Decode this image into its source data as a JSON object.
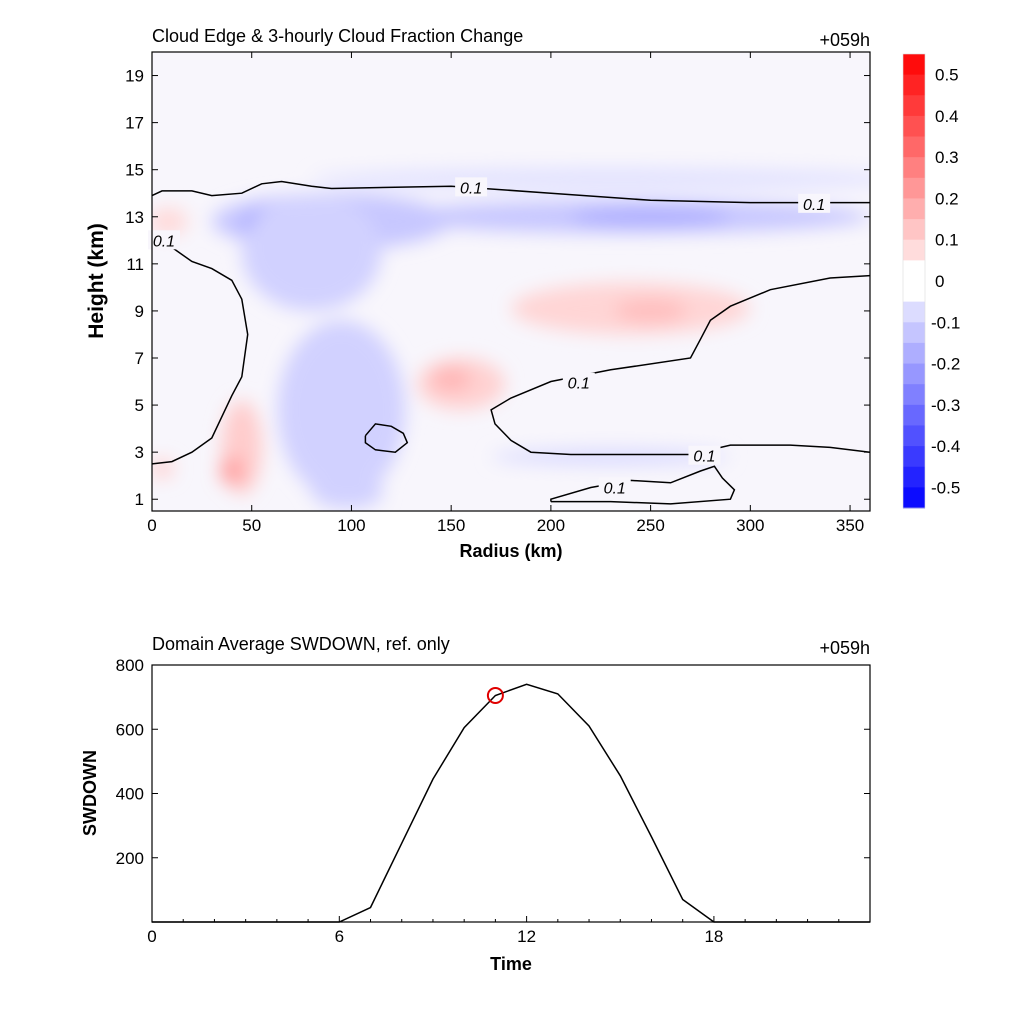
{
  "chart_data": [
    {
      "type": "heatmap",
      "title": "Cloud Edge & 3-hourly Cloud Fraction Change",
      "time_label": "+059h",
      "xlabel": "Radius (km)",
      "ylabel": "Height (km)",
      "xlim": [
        0,
        360
      ],
      "ylim": [
        0.5,
        20
      ],
      "xticks": [
        0,
        50,
        100,
        150,
        200,
        250,
        300,
        350
      ],
      "yticks": [
        1,
        3,
        5,
        7,
        9,
        11,
        13,
        15,
        17,
        19
      ],
      "colorbar": {
        "range": [
          -0.55,
          0.55
        ],
        "step": 0.05,
        "labels": [
          "0.5",
          "0.4",
          "0.3",
          "0.2",
          "0.1",
          "0",
          "-0.1",
          "-0.2",
          "-0.3",
          "-0.4",
          "-0.5"
        ],
        "positive_color": "#ff0000",
        "negative_color": "#0000ff"
      },
      "contour_label": "0.1",
      "regions": [
        {
          "cx": 90,
          "cy": 12.8,
          "rx": 60,
          "ry": 1.2,
          "value": -0.12
        },
        {
          "cx": 73,
          "cy": 12.6,
          "rx": 28,
          "ry": 1.0,
          "value": -0.22
        },
        {
          "cx": 73,
          "cy": 12.7,
          "rx": 9,
          "ry": 0.7,
          "value": -0.33
        },
        {
          "cx": 80,
          "cy": 11.5,
          "rx": 35,
          "ry": 2.5,
          "value": -0.1
        },
        {
          "cx": 240,
          "cy": 13.0,
          "rx": 120,
          "ry": 0.7,
          "value": -0.12
        },
        {
          "cx": 250,
          "cy": 13.0,
          "rx": 40,
          "ry": 0.45,
          "value": -0.17
        },
        {
          "cx": 230,
          "cy": 14.6,
          "rx": 150,
          "ry": 0.5,
          "value": -0.06
        },
        {
          "cx": 100,
          "cy": 5.8,
          "rx": 22,
          "ry": 2.4,
          "value": -0.18
        },
        {
          "cx": 95,
          "cy": 4.8,
          "rx": 32,
          "ry": 3.8,
          "value": -0.1
        },
        {
          "cx": 98,
          "cy": 1.3,
          "rx": 18,
          "ry": 0.7,
          "value": -0.1
        },
        {
          "cx": 230,
          "cy": 2.8,
          "rx": 60,
          "ry": 0.35,
          "value": -0.08
        },
        {
          "cx": 240,
          "cy": 9.1,
          "rx": 60,
          "ry": 1.1,
          "value": 0.09
        },
        {
          "cx": 250,
          "cy": 9.0,
          "rx": 18,
          "ry": 0.5,
          "value": 0.14
        },
        {
          "cx": 155,
          "cy": 5.9,
          "rx": 22,
          "ry": 1.1,
          "value": 0.1
        },
        {
          "cx": 150,
          "cy": 6.1,
          "rx": 10,
          "ry": 0.5,
          "value": 0.16
        },
        {
          "cx": 45,
          "cy": 3.2,
          "rx": 10,
          "ry": 2.0,
          "value": 0.11
        },
        {
          "cx": 40,
          "cy": 2.2,
          "rx": 6,
          "ry": 0.6,
          "value": 0.2
        },
        {
          "cx": 8,
          "cy": 12.8,
          "rx": 10,
          "ry": 0.6,
          "value": 0.08
        },
        {
          "cx": 5,
          "cy": 2.3,
          "rx": 6,
          "ry": 0.4,
          "value": 0.1
        }
      ],
      "contours": [
        {
          "points": [
            [
              0,
              13.9
            ],
            [
              5,
              14.1
            ],
            [
              20,
              14.1
            ],
            [
              30,
              13.9
            ],
            [
              45,
              14.0
            ],
            [
              55,
              14.4
            ],
            [
              65,
              14.5
            ],
            [
              80,
              14.3
            ],
            [
              90,
              14.2
            ],
            [
              150,
              14.3
            ],
            [
              200,
              14.0
            ],
            [
              250,
              13.7
            ],
            [
              300,
              13.6
            ],
            [
              330,
              13.6
            ],
            [
              360,
              13.6
            ]
          ],
          "labels": [
            [
              160,
              14.25
            ],
            [
              332,
              13.55
            ]
          ]
        },
        {
          "points": [
            [
              0,
              12.2
            ],
            [
              10,
              11.7
            ],
            [
              20,
              11.1
            ],
            [
              30,
              10.8
            ],
            [
              40,
              10.3
            ],
            [
              45,
              9.5
            ],
            [
              48,
              8.0
            ],
            [
              45,
              6.2
            ],
            [
              40,
              5.4
            ],
            [
              35,
              4.5
            ],
            [
              30,
              3.6
            ],
            [
              20,
              3.0
            ],
            [
              10,
              2.6
            ],
            [
              0,
              2.5
            ]
          ],
          "labels": [
            [
              6,
              12.0
            ]
          ]
        },
        {
          "points": [
            [
              360,
              10.5
            ],
            [
              340,
              10.4
            ],
            [
              310,
              9.9
            ],
            [
              290,
              9.2
            ],
            [
              280,
              8.6
            ],
            [
              275,
              7.8
            ],
            [
              270,
              7.0
            ],
            [
              230,
              6.5
            ],
            [
              200,
              6.0
            ],
            [
              180,
              5.3
            ],
            [
              170,
              4.8
            ],
            [
              172,
              4.2
            ],
            [
              180,
              3.5
            ],
            [
              190,
              3.0
            ],
            [
              210,
              2.9
            ],
            [
              240,
              2.9
            ],
            [
              270,
              2.9
            ],
            [
              290,
              3.3
            ],
            [
              320,
              3.3
            ],
            [
              340,
              3.2
            ],
            [
              360,
              3.0
            ]
          ],
          "labels": [
            [
              214,
              5.95
            ],
            [
              277,
              2.85
            ]
          ]
        },
        {
          "points": [
            [
              200,
              0.9
            ],
            [
              200,
              1.0
            ],
            [
              220,
              1.5
            ],
            [
              240,
              1.8
            ],
            [
              260,
              1.7
            ],
            [
              275,
              2.2
            ],
            [
              282,
              2.4
            ],
            [
              286,
              1.9
            ],
            [
              292,
              1.4
            ],
            [
              290,
              1.0
            ],
            [
              260,
              0.8
            ],
            [
              230,
              0.9
            ],
            [
              200,
              0.9
            ]
          ],
          "labels": [
            [
              232,
              1.5
            ]
          ]
        },
        {
          "points": [
            [
              107,
              3.7
            ],
            [
              112,
              4.2
            ],
            [
              120,
              4.1
            ],
            [
              126,
              3.8
            ],
            [
              128,
              3.4
            ],
            [
              122,
              3.0
            ],
            [
              112,
              3.1
            ],
            [
              107,
              3.4
            ],
            [
              107,
              3.7
            ]
          ],
          "labels": []
        }
      ]
    },
    {
      "type": "line",
      "title": "Domain Average SWDOWN, ref. only",
      "time_label": "+059h",
      "xlabel": "Time",
      "ylabel": "SWDOWN",
      "xlim": [
        0,
        23
      ],
      "ylim": [
        0,
        800
      ],
      "xticks": [
        0,
        6,
        12,
        18
      ],
      "yticks": [
        200,
        400,
        600,
        800
      ],
      "series": [
        {
          "x": [
            0,
            1,
            2,
            3,
            4,
            5,
            6,
            7,
            8,
            9,
            10,
            11,
            12,
            13,
            14,
            15,
            16,
            17,
            18,
            19,
            20,
            21,
            22,
            23
          ],
          "y": [
            0,
            0,
            0,
            0,
            0,
            0,
            0,
            45,
            245,
            445,
            605,
            705,
            740,
            710,
            610,
            455,
            265,
            70,
            0,
            0,
            0,
            0,
            0,
            0
          ],
          "color": "#000000"
        }
      ],
      "marker": {
        "x": 11,
        "y": 705,
        "color": "#e00000"
      }
    }
  ]
}
